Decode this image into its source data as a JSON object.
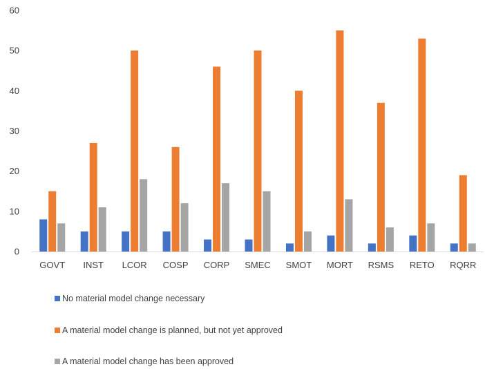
{
  "chart_data": {
    "type": "bar",
    "title": "",
    "xlabel": "",
    "ylabel": "",
    "ylim": [
      0,
      60
    ],
    "yticks": [
      0,
      10,
      20,
      30,
      40,
      50,
      60
    ],
    "grid": false,
    "legend_position": "bottom",
    "categories": [
      "GOVT",
      "INST",
      "LCOR",
      "COSP",
      "CORP",
      "SMEC",
      "SMOT",
      "MORT",
      "RSMS",
      "RETO",
      "RQRR"
    ],
    "series": [
      {
        "name": "No material model change necessary",
        "color": "#4472C4",
        "values": [
          8,
          5,
          5,
          5,
          3,
          3,
          2,
          4,
          2,
          4,
          2
        ]
      },
      {
        "name": "A material model change is planned, but not yet approved",
        "color": "#ED7D31",
        "values": [
          15,
          27,
          50,
          26,
          46,
          50,
          40,
          55,
          37,
          53,
          19
        ]
      },
      {
        "name": "A material model change has been approved",
        "color": "#A5A5A5",
        "values": [
          7,
          11,
          18,
          12,
          17,
          15,
          5,
          13,
          6,
          7,
          2
        ]
      }
    ]
  }
}
